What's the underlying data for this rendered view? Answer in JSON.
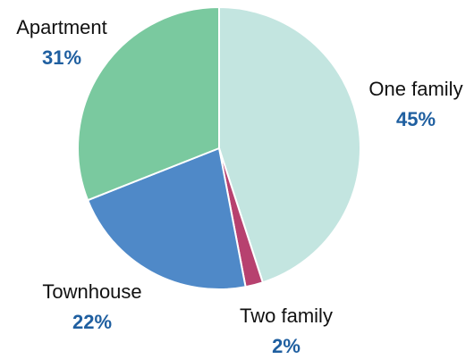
{
  "chart_data": {
    "type": "pie",
    "categories": [
      "One family",
      "Two family",
      "Townhouse",
      "Apartment"
    ],
    "values": [
      45,
      2,
      22,
      31
    ],
    "value_labels": [
      "45%",
      "2%",
      "22%",
      "31%"
    ],
    "colors": [
      "#c3e5e0",
      "#b7416f",
      "#4f89c8",
      "#7ac99f"
    ]
  }
}
